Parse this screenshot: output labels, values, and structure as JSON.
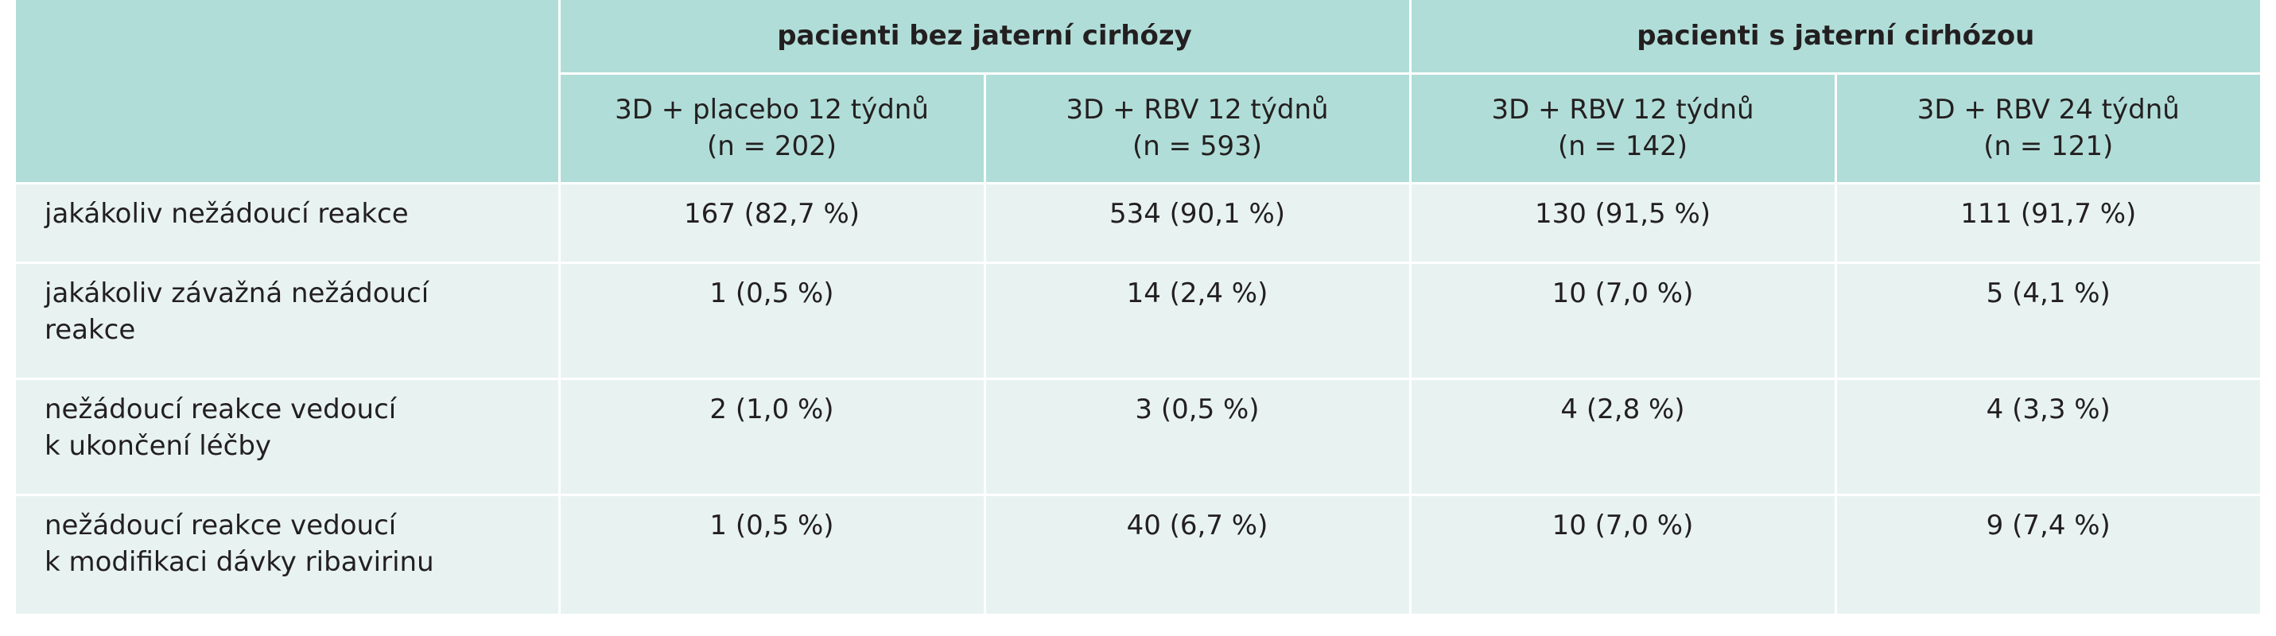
{
  "groups": [
    "pacienti bez jaterní cirhózy",
    "pacienti s jaterní cirhózou"
  ],
  "columns": [
    {
      "label": "3D + placebo 12 týdnů",
      "n": "(n = 202)"
    },
    {
      "label": "3D + RBV 12 týdnů",
      "n": "(n = 593)"
    },
    {
      "label": "3D + RBV 12 týdnů",
      "n": "(n = 142)"
    },
    {
      "label": "3D + RBV 24 týdnů",
      "n": "(n = 121)"
    }
  ],
  "rows": [
    {
      "label": [
        "jakákoliv nežádoucí reakce"
      ],
      "values": [
        "167 (82,7 %)",
        "534 (90,1 %)",
        "130 (91,5 %)",
        "111 (91,7 %)"
      ]
    },
    {
      "label": [
        "jakákoliv závažná nežádoucí",
        "reakce"
      ],
      "values": [
        "1 (0,5 %)",
        "14 (2,4 %)",
        "10 (7,0 %)",
        "5 (4,1 %)"
      ]
    },
    {
      "label": [
        "nežádoucí reakce vedoucí",
        "k ukončení léčby"
      ],
      "values": [
        "2 (1,0 %)",
        "3 (0,5 %)",
        "4 (2,8 %)",
        "4 (3,3 %)"
      ]
    },
    {
      "label": [
        "nežádoucí reakce vedoucí",
        "k modifikaci dávky ribavirinu"
      ],
      "values": [
        "1 (0,5 %)",
        "40 (6,7 %)",
        "10 (7,0 %)",
        "9 (7,4 %)"
      ]
    }
  ]
}
